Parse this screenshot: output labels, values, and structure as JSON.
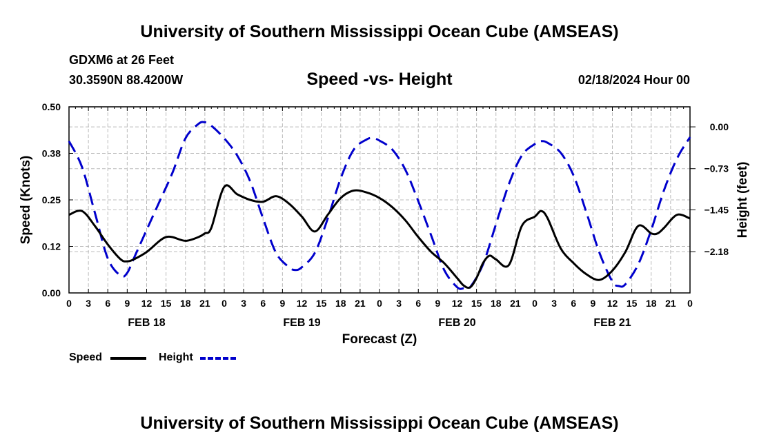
{
  "header": {
    "title": "University of Southern Mississippi Ocean Cube (AMSEAS)",
    "station": "GDXM6 at 26 Feet",
    "coords": "30.3590N  88.4200W",
    "plot_title": "Speed -vs- Height",
    "date": "02/18/2024 Hour 00"
  },
  "footer": {
    "title": "University of Southern Mississippi Ocean Cube (AMSEAS)"
  },
  "legend": {
    "speed_label": "Speed",
    "height_label": "Height"
  },
  "colors": {
    "speed": "#000000",
    "height": "#0000cc",
    "grid": "#bbbbbb"
  },
  "chart_data": {
    "type": "line",
    "title": "Speed -vs- Height",
    "xlabel": "Forecast (Z)",
    "ylabel": "Speed (Knots)",
    "y2label": "Height (feet)",
    "xlim": [
      0,
      96
    ],
    "ylim": [
      0,
      0.5
    ],
    "y2lim": [
      -2.9,
      0.35
    ],
    "x_tick_labels": [
      "0",
      "3",
      "6",
      "9",
      "12",
      "15",
      "18",
      "21",
      "0",
      "3",
      "6",
      "9",
      "12",
      "15",
      "18",
      "21",
      "0",
      "3",
      "6",
      "9",
      "12",
      "15",
      "18",
      "21",
      "0",
      "3",
      "6",
      "9",
      "12",
      "15",
      "18",
      "21",
      "0"
    ],
    "day_labels": [
      {
        "hour": 12,
        "label": "FEB 18"
      },
      {
        "hour": 36,
        "label": "FEB 19"
      },
      {
        "hour": 60,
        "label": "FEB 20"
      },
      {
        "hour": 84,
        "label": "FEB 21"
      }
    ],
    "y_ticks": [
      {
        "value": 0.0,
        "label": "0.00"
      },
      {
        "value": 0.125,
        "label": "0.12"
      },
      {
        "value": 0.25,
        "label": "0.25"
      },
      {
        "value": 0.375,
        "label": "0.38"
      },
      {
        "value": 0.5,
        "label": "0.50"
      }
    ],
    "y2_ticks": [
      {
        "value": 0.0,
        "label": "0.00"
      },
      {
        "value": -0.73,
        "label": "−0.73"
      },
      {
        "value": -1.45,
        "label": "−1.45"
      },
      {
        "value": -2.18,
        "label": "−2.18"
      }
    ],
    "series": [
      {
        "name": "Speed",
        "axis": "left",
        "style": "solid",
        "x": [
          0,
          2,
          4,
          6,
          8,
          9,
          10,
          12,
          14,
          15,
          16,
          18,
          20,
          21,
          22,
          24,
          26,
          28,
          30,
          32,
          34,
          36,
          38,
          40,
          42,
          44,
          46,
          48,
          50,
          52,
          54,
          56,
          58,
          60,
          61,
          62,
          63,
          64,
          65,
          66,
          68,
          70,
          72,
          73,
          74,
          76,
          78,
          80,
          82,
          84,
          86,
          88,
          90,
          91,
          92,
          94,
          96
        ],
        "values": [
          0.21,
          0.22,
          0.18,
          0.13,
          0.09,
          0.085,
          0.09,
          0.11,
          0.14,
          0.15,
          0.15,
          0.14,
          0.15,
          0.16,
          0.175,
          0.285,
          0.265,
          0.25,
          0.245,
          0.26,
          0.24,
          0.205,
          0.165,
          0.21,
          0.255,
          0.275,
          0.27,
          0.255,
          0.23,
          0.195,
          0.15,
          0.11,
          0.08,
          0.04,
          0.02,
          0.015,
          0.04,
          0.08,
          0.1,
          0.09,
          0.075,
          0.18,
          0.205,
          0.22,
          0.2,
          0.12,
          0.08,
          0.05,
          0.035,
          0.06,
          0.11,
          0.18,
          0.16,
          0.16,
          0.175,
          0.21,
          0.2
        ]
      },
      {
        "name": "Height",
        "axis": "right",
        "style": "dashed",
        "x": [
          0,
          2,
          4,
          6,
          8,
          9,
          10,
          12,
          14,
          16,
          18,
          20,
          21,
          22,
          24,
          26,
          28,
          30,
          32,
          34,
          35,
          36,
          38,
          40,
          42,
          44,
          46,
          47,
          48,
          50,
          52,
          54,
          56,
          58,
          60,
          61,
          62,
          64,
          66,
          68,
          70,
          72,
          73,
          74,
          76,
          78,
          80,
          82,
          84,
          85,
          86,
          88,
          90,
          92,
          94,
          96
        ],
        "values": [
          -0.25,
          -0.7,
          -1.5,
          -2.3,
          -2.6,
          -2.55,
          -2.3,
          -1.8,
          -1.3,
          -0.8,
          -0.2,
          0.05,
          0.08,
          0.02,
          -0.2,
          -0.5,
          -0.95,
          -1.6,
          -2.2,
          -2.45,
          -2.5,
          -2.45,
          -2.2,
          -1.6,
          -0.9,
          -0.4,
          -0.22,
          -0.2,
          -0.24,
          -0.4,
          -0.75,
          -1.3,
          -1.9,
          -2.5,
          -2.8,
          -2.82,
          -2.8,
          -2.4,
          -1.7,
          -1.0,
          -0.5,
          -0.3,
          -0.25,
          -0.28,
          -0.45,
          -0.85,
          -1.5,
          -2.2,
          -2.7,
          -2.78,
          -2.75,
          -2.4,
          -1.8,
          -1.1,
          -0.55,
          -0.18
        ]
      }
    ]
  }
}
